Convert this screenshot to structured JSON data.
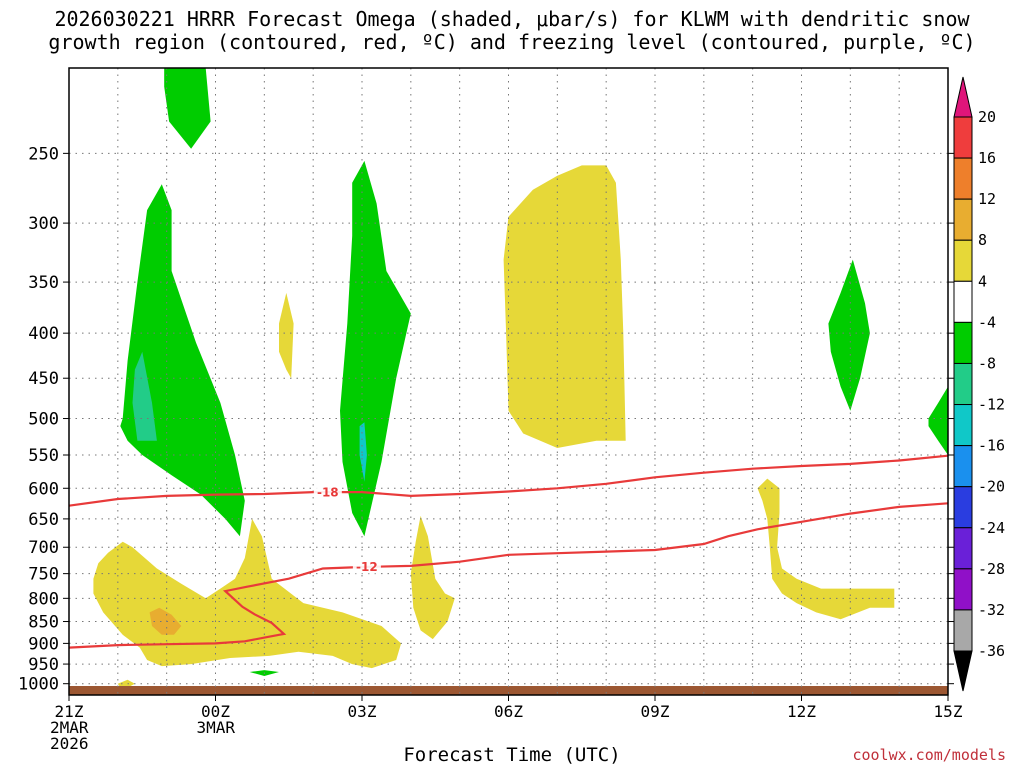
{
  "header": {
    "title_line1": "2026030221 HRRR Forecast Omega (shaded, μbar/s) for KLWM with dendritic snow",
    "title_line2": "growth region (contoured, red, ºC) and freezing level (contoured, purple, ºC)"
  },
  "footer": {
    "xtitle": "Forecast Time (UTC)",
    "credit": "coolwx.com/models"
  },
  "chart_data": {
    "type": "heatmap",
    "station": "KLWM",
    "model": "HRRR",
    "init": "2026030221",
    "x": {
      "range_hours": [
        0,
        18
      ],
      "ticks": [
        {
          "h": 0,
          "lines": [
            "21Z",
            "2MAR",
            "2026"
          ]
        },
        {
          "h": 3,
          "lines": [
            "00Z",
            "3MAR"
          ]
        },
        {
          "h": 6,
          "lines": [
            "03Z"
          ]
        },
        {
          "h": 9,
          "lines": [
            "06Z"
          ]
        },
        {
          "h": 12,
          "lines": [
            "09Z"
          ]
        },
        {
          "h": 15,
          "lines": [
            "12Z"
          ]
        },
        {
          "h": 18,
          "lines": [
            "15Z"
          ]
        }
      ],
      "grid_every_hours": 1
    },
    "y": {
      "unit": "hPa",
      "scale": "log",
      "range": [
        200,
        1030
      ],
      "ticks": [
        250,
        300,
        350,
        400,
        450,
        500,
        550,
        600,
        650,
        700,
        750,
        800,
        850,
        900,
        950,
        1000
      ]
    },
    "grid": true,
    "colorbar": {
      "labels": [
        "20",
        "16",
        "12",
        "8",
        "4",
        "-4",
        "-8",
        "-12",
        "-16",
        "-20",
        "-24",
        "-28",
        "-32",
        "-36"
      ],
      "colors": [
        "#ef3d3d",
        "#ee7f2b",
        "#e8ad30",
        "#e6d838",
        "#ffffff",
        "#00cc00",
        "#22cc88",
        "#10c8c8",
        "#1a90ee",
        "#2a3de0",
        "#6a20d8",
        "#9010c8",
        "#a8a8a8"
      ],
      "top_color": "#e0157a",
      "bottom_color": "#000000"
    },
    "regions": [
      {
        "color": "#00cc00",
        "pts": [
          [
            1.95,
            200
          ],
          [
            2.8,
            200
          ],
          [
            2.9,
            230
          ],
          [
            2.5,
            247
          ],
          [
            2.05,
            230
          ],
          [
            1.95,
            210
          ]
        ]
      },
      {
        "color": "#00cc00",
        "pts": [
          [
            1.1,
            500
          ],
          [
            1.2,
            430
          ],
          [
            1.4,
            350
          ],
          [
            1.6,
            290
          ],
          [
            1.9,
            271
          ],
          [
            2.1,
            290
          ],
          [
            2.1,
            340
          ],
          [
            2.6,
            410
          ],
          [
            3.1,
            480
          ],
          [
            3.4,
            550
          ],
          [
            3.6,
            620
          ],
          [
            3.5,
            680
          ],
          [
            3.2,
            650
          ],
          [
            2.7,
            610
          ],
          [
            2.1,
            580
          ],
          [
            1.5,
            550
          ],
          [
            1.2,
            530
          ],
          [
            1.05,
            510
          ]
        ]
      },
      {
        "color": "#22cc88",
        "pts": [
          [
            1.35,
            440
          ],
          [
            1.5,
            420
          ],
          [
            1.7,
            480
          ],
          [
            1.8,
            530
          ],
          [
            1.4,
            530
          ],
          [
            1.3,
            480
          ]
        ]
      },
      {
        "color": "#00cc00",
        "pts": [
          [
            5.8,
            270
          ],
          [
            6.05,
            255
          ],
          [
            6.3,
            285
          ],
          [
            6.5,
            340
          ],
          [
            7.0,
            380
          ],
          [
            6.7,
            450
          ],
          [
            6.4,
            560
          ],
          [
            6.05,
            680
          ],
          [
            5.8,
            640
          ],
          [
            5.6,
            560
          ],
          [
            5.55,
            490
          ],
          [
            5.7,
            390
          ],
          [
            5.8,
            310
          ]
        ]
      },
      {
        "color": "#10c8c8",
        "pts": [
          [
            5.95,
            510
          ],
          [
            6.05,
            505
          ],
          [
            6.1,
            550
          ],
          [
            6.05,
            590
          ],
          [
            5.95,
            550
          ]
        ]
      },
      {
        "color": "#00cc00",
        "pts": [
          [
            15.55,
            390
          ],
          [
            15.8,
            360
          ],
          [
            16.05,
            330
          ],
          [
            16.3,
            370
          ],
          [
            16.4,
            400
          ],
          [
            16.2,
            450
          ],
          [
            16.0,
            490
          ],
          [
            15.8,
            460
          ],
          [
            15.6,
            420
          ]
        ]
      },
      {
        "color": "#00cc00",
        "pts": [
          [
            17.6,
            500
          ],
          [
            17.8,
            480
          ],
          [
            18.0,
            460
          ],
          [
            18.0,
            550
          ],
          [
            17.8,
            530
          ],
          [
            17.6,
            510
          ]
        ]
      },
      {
        "color": "#00cc00",
        "pts": [
          [
            3.7,
            970
          ],
          [
            4.0,
            965
          ],
          [
            4.3,
            970
          ],
          [
            4.0,
            980
          ]
        ]
      },
      {
        "color": "#e6d838",
        "pts": [
          [
            9.0,
            295
          ],
          [
            9.5,
            275
          ],
          [
            10.0,
            265
          ],
          [
            10.5,
            258
          ],
          [
            11.0,
            258
          ],
          [
            11.2,
            270
          ],
          [
            11.3,
            330
          ],
          [
            11.35,
            400
          ],
          [
            11.4,
            530
          ],
          [
            10.8,
            530
          ],
          [
            10.0,
            540
          ],
          [
            9.3,
            520
          ],
          [
            9.0,
            490
          ],
          [
            8.95,
            400
          ],
          [
            8.9,
            330
          ]
        ]
      },
      {
        "color": "#e6d838",
        "pts": [
          [
            4.3,
            390
          ],
          [
            4.45,
            360
          ],
          [
            4.6,
            390
          ],
          [
            4.55,
            450
          ],
          [
            4.45,
            440
          ],
          [
            4.3,
            420
          ]
        ]
      },
      {
        "color": "#e6d838",
        "pts": [
          [
            0.5,
            760
          ],
          [
            0.6,
            730
          ],
          [
            0.8,
            710
          ],
          [
            1.1,
            690
          ],
          [
            1.3,
            700
          ],
          [
            1.8,
            740
          ],
          [
            2.3,
            770
          ],
          [
            2.8,
            800
          ],
          [
            3.1,
            780
          ],
          [
            3.4,
            760
          ],
          [
            3.6,
            720
          ],
          [
            3.75,
            650
          ],
          [
            3.95,
            680
          ],
          [
            4.15,
            760
          ],
          [
            4.8,
            810
          ],
          [
            5.6,
            830
          ],
          [
            6.4,
            860
          ],
          [
            6.8,
            900
          ],
          [
            6.7,
            940
          ],
          [
            6.2,
            960
          ],
          [
            5.8,
            950
          ],
          [
            5.4,
            930
          ],
          [
            4.7,
            920
          ],
          [
            4.1,
            930
          ],
          [
            3.3,
            935
          ],
          [
            2.5,
            950
          ],
          [
            1.9,
            955
          ],
          [
            1.6,
            940
          ],
          [
            1.45,
            910
          ],
          [
            1.1,
            880
          ],
          [
            0.7,
            830
          ],
          [
            0.5,
            790
          ]
        ]
      },
      {
        "color": "#e8ad30",
        "pts": [
          [
            1.65,
            830
          ],
          [
            1.85,
            820
          ],
          [
            2.1,
            835
          ],
          [
            2.3,
            860
          ],
          [
            2.15,
            880
          ],
          [
            1.9,
            880
          ],
          [
            1.7,
            860
          ]
        ]
      },
      {
        "color": "#e6d838",
        "pts": [
          [
            1.0,
            1000
          ],
          [
            1.2,
            990
          ],
          [
            1.35,
            1000
          ],
          [
            1.2,
            1010
          ],
          [
            1.05,
            1010
          ]
        ]
      },
      {
        "color": "#e6d838",
        "pts": [
          [
            7.0,
            750
          ],
          [
            7.1,
            690
          ],
          [
            7.2,
            645
          ],
          [
            7.35,
            680
          ],
          [
            7.5,
            760
          ],
          [
            7.7,
            790
          ],
          [
            7.9,
            800
          ],
          [
            7.75,
            850
          ],
          [
            7.45,
            890
          ],
          [
            7.2,
            870
          ],
          [
            7.05,
            820
          ]
        ]
      },
      {
        "color": "#e6d838",
        "pts": [
          [
            14.1,
            600
          ],
          [
            14.3,
            585
          ],
          [
            14.55,
            600
          ],
          [
            14.55,
            640
          ],
          [
            14.5,
            700
          ],
          [
            14.6,
            740
          ],
          [
            14.9,
            760
          ],
          [
            15.4,
            780
          ],
          [
            15.8,
            780
          ],
          [
            16.4,
            780
          ],
          [
            16.9,
            780
          ],
          [
            16.9,
            820
          ],
          [
            16.4,
            820
          ],
          [
            15.8,
            845
          ],
          [
            15.3,
            830
          ],
          [
            14.9,
            810
          ],
          [
            14.6,
            790
          ],
          [
            14.4,
            760
          ],
          [
            14.35,
            700
          ],
          [
            14.3,
            650
          ],
          [
            14.2,
            620
          ]
        ]
      }
    ],
    "contours": [
      {
        "label": "-18",
        "label_at": [
          5.3,
          606
        ],
        "color": "#e83a3a",
        "pts": [
          [
            0,
            628
          ],
          [
            1,
            617
          ],
          [
            2,
            612
          ],
          [
            3,
            610
          ],
          [
            4,
            609
          ],
          [
            5,
            606
          ],
          [
            6,
            606
          ],
          [
            7,
            612
          ],
          [
            8,
            609
          ],
          [
            9,
            605
          ],
          [
            10,
            600
          ],
          [
            11,
            593
          ],
          [
            12,
            583
          ],
          [
            13,
            576
          ],
          [
            14,
            570
          ],
          [
            15,
            566
          ],
          [
            16,
            563
          ],
          [
            17,
            558
          ],
          [
            18,
            551
          ]
        ]
      },
      {
        "label": "-12",
        "label_at": [
          6.1,
          736
        ],
        "color": "#e83a3a",
        "pts": [
          [
            0,
            910
          ],
          [
            1,
            904
          ],
          [
            2,
            902
          ],
          [
            3,
            900
          ],
          [
            3.6,
            895
          ],
          [
            4.4,
            878
          ],
          [
            4.15,
            853
          ],
          [
            3.8,
            834
          ],
          [
            3.55,
            818
          ],
          [
            3.2,
            785
          ],
          [
            3.65,
            776
          ],
          [
            4.5,
            760
          ],
          [
            5.2,
            740
          ],
          [
            6.0,
            737
          ],
          [
            7.0,
            735
          ],
          [
            8,
            727
          ],
          [
            9,
            714
          ],
          [
            10,
            711
          ],
          [
            11,
            708
          ],
          [
            12,
            705
          ],
          [
            13,
            694
          ],
          [
            13.5,
            680
          ],
          [
            14.1,
            668
          ],
          [
            15,
            655
          ],
          [
            16,
            641
          ],
          [
            17,
            630
          ],
          [
            18,
            624
          ]
        ]
      }
    ]
  }
}
